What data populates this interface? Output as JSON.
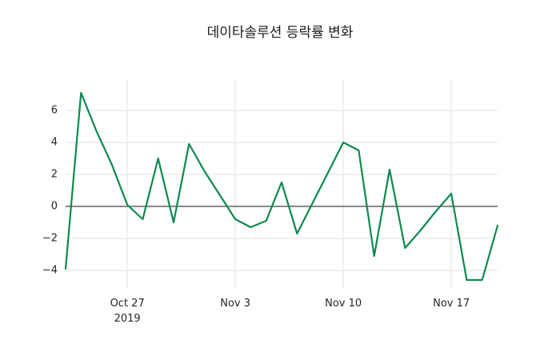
{
  "chart_data": {
    "type": "line",
    "title": "데이타솔루션 등락률 변화",
    "xlabel": "",
    "ylabel": "",
    "x": [
      "2019-10-23",
      "2019-10-24",
      "2019-10-25",
      "2019-10-26",
      "2019-10-27",
      "2019-10-28",
      "2019-10-29",
      "2019-10-30",
      "2019-10-31",
      "2019-11-01",
      "2019-11-02",
      "2019-11-03",
      "2019-11-04",
      "2019-11-05",
      "2019-11-06",
      "2019-11-07",
      "2019-11-08",
      "2019-11-09",
      "2019-11-10",
      "2019-11-11",
      "2019-11-12",
      "2019-11-13",
      "2019-11-14",
      "2019-11-15",
      "2019-11-16",
      "2019-11-17",
      "2019-11-18",
      "2019-11-19",
      "2019-11-20"
    ],
    "values": [
      -3.9,
      7.1,
      4.7,
      2.6,
      0.1,
      -0.8,
      3.0,
      -1.0,
      3.9,
      2.2,
      0.7,
      -0.8,
      -1.3,
      -0.9,
      1.5,
      -1.7,
      0.2,
      2.1,
      4.0,
      3.5,
      -3.1,
      2.3,
      -2.6,
      -1.5,
      -0.3,
      0.8,
      -4.6,
      -4.6,
      -1.2
    ],
    "ylim": [
      -5.1,
      7.9
    ],
    "yticks": [
      -4,
      -2,
      0,
      2,
      4,
      6
    ],
    "xticks": [
      {
        "index": 4,
        "label": "Oct 27",
        "sublabel": "2019"
      },
      {
        "index": 11,
        "label": "Nov 3",
        "sublabel": ""
      },
      {
        "index": 18,
        "label": "Nov 10",
        "sublabel": ""
      },
      {
        "index": 25,
        "label": "Nov 17",
        "sublabel": ""
      }
    ],
    "grid": true,
    "legend": "none",
    "zero_line": true,
    "colors": {
      "line": "#0c8a4f",
      "grid": "#e3e3e3",
      "zero_line": "#404040",
      "text": "#262626",
      "background": "#ffffff"
    }
  }
}
